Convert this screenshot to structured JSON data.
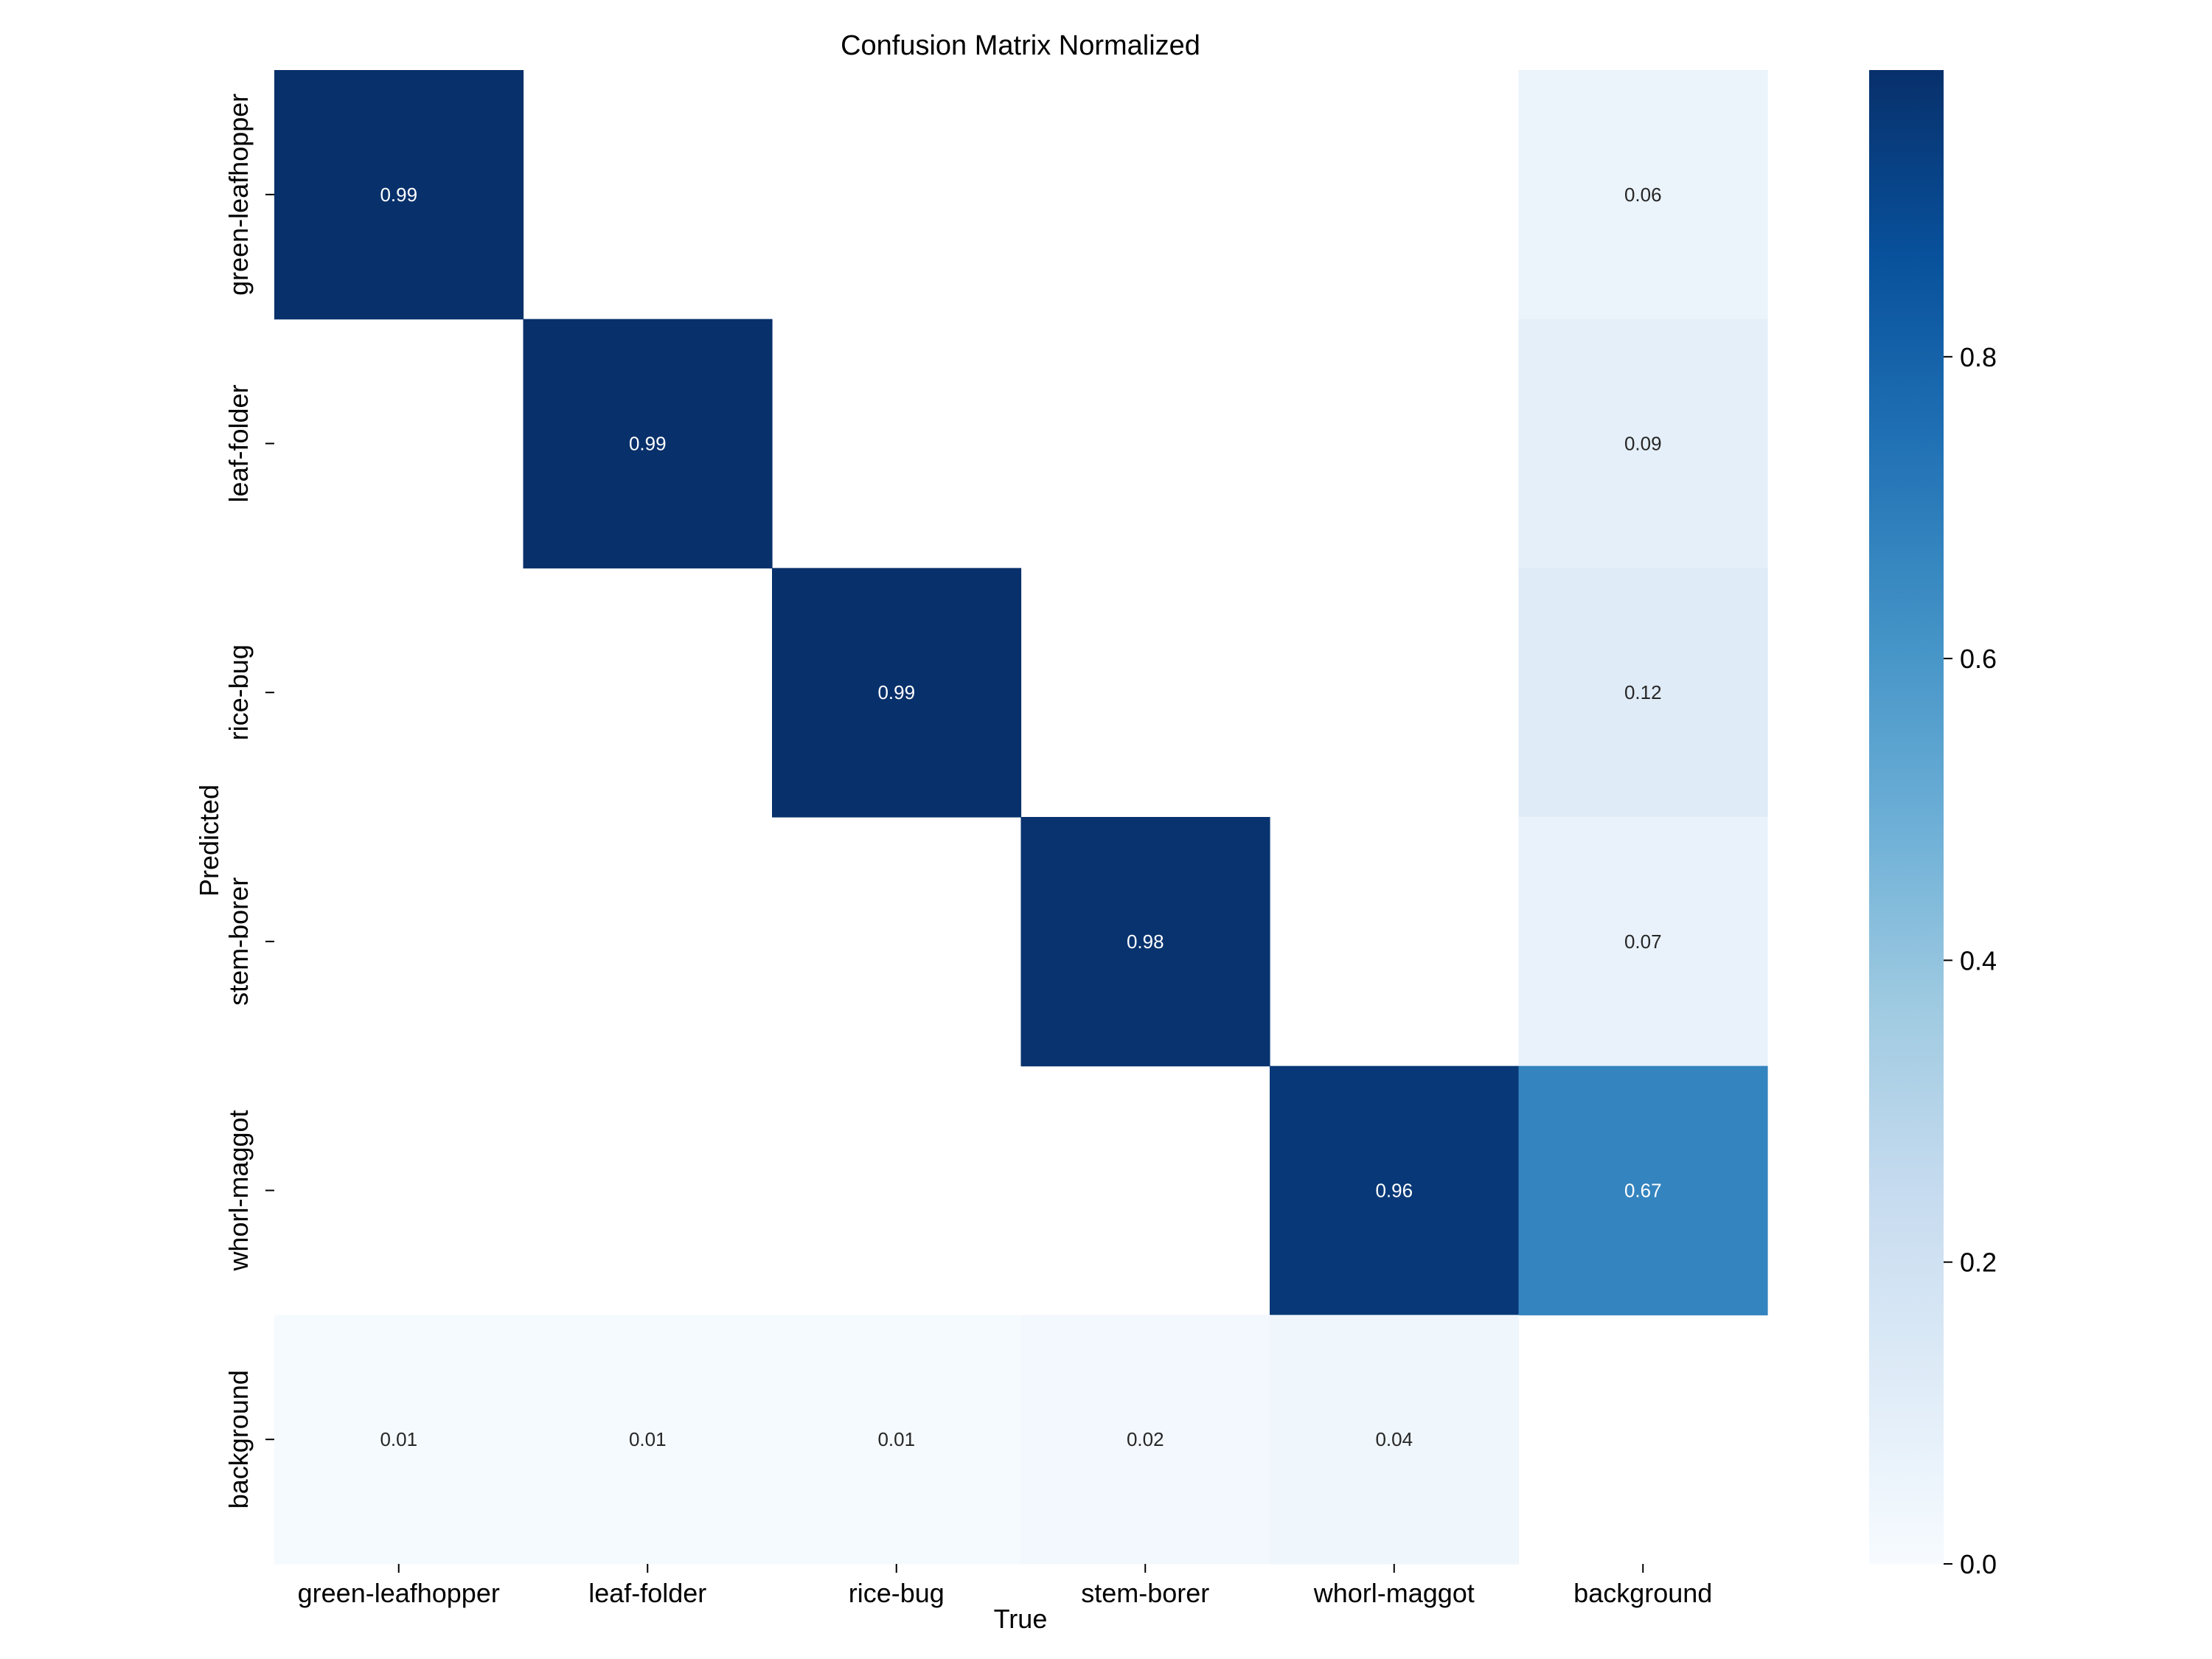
{
  "chart_data": {
    "type": "heatmap",
    "title": "Confusion Matrix Normalized",
    "xlabel": "True",
    "ylabel": "Predicted",
    "x_categories": [
      "green-leafhopper",
      "leaf-folder",
      "rice-bug",
      "stem-borer",
      "whorl-maggot",
      "background"
    ],
    "y_categories": [
      "green-leafhopper",
      "leaf-folder",
      "rice-bug",
      "stem-borer",
      "whorl-maggot",
      "background"
    ],
    "values": [
      [
        0.99,
        null,
        null,
        null,
        null,
        0.06
      ],
      [
        null,
        0.99,
        null,
        null,
        null,
        0.09
      ],
      [
        null,
        null,
        0.99,
        null,
        null,
        0.12
      ],
      [
        null,
        null,
        null,
        0.98,
        null,
        0.07
      ],
      [
        null,
        null,
        null,
        null,
        0.96,
        0.67
      ],
      [
        0.01,
        0.01,
        0.01,
        0.02,
        0.04,
        null
      ]
    ],
    "colormap": "Blues",
    "colorbar": {
      "range": [
        0.0,
        0.99
      ],
      "ticks": [
        0.0,
        0.2,
        0.4,
        0.6,
        0.8
      ],
      "tick_labels": [
        "0.0",
        "0.2",
        "0.4",
        "0.6",
        "0.8"
      ]
    }
  }
}
